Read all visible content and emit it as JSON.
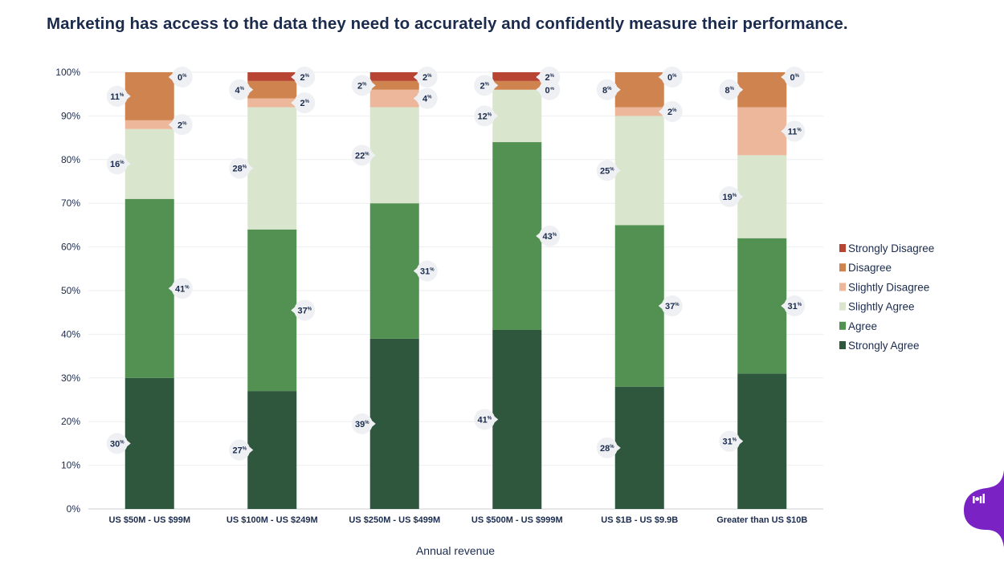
{
  "chart_data": {
    "type": "bar",
    "stacked": true,
    "title": "Marketing has access to the data they need to accurately and confidently measure their performance.",
    "xlabel": "Annual revenue",
    "ylabel": "",
    "ylim": [
      0,
      100
    ],
    "yticks": [
      "0%",
      "10%",
      "20%",
      "30%",
      "40%",
      "50%",
      "60%",
      "70%",
      "80%",
      "90%",
      "100%"
    ],
    "categories": [
      "US $50M - US $99M",
      "US $100M - US $249M",
      "US $250M - US $499M",
      "US $500M - US $999M",
      "US $1B - US $9.9B",
      "Greater than US $10B"
    ],
    "series": [
      {
        "name": "Strongly Agree",
        "color": "#2e573d",
        "values": [
          30,
          27,
          39,
          41,
          28,
          31
        ]
      },
      {
        "name": "Agree",
        "color": "#529152",
        "values": [
          41,
          37,
          31,
          43,
          37,
          31
        ]
      },
      {
        "name": "Slightly Agree",
        "color": "#d9e5cd",
        "values": [
          16,
          28,
          22,
          12,
          25,
          19
        ]
      },
      {
        "name": "Slightly Disagree",
        "color": "#edb79b",
        "values": [
          2,
          2,
          4,
          0,
          2,
          11
        ]
      },
      {
        "name": "Disagree",
        "color": "#cf8450",
        "values": [
          11,
          4,
          2,
          2,
          8,
          8
        ]
      },
      {
        "name": "Strongly Disagree",
        "color": "#b84434",
        "values": [
          0,
          2,
          2,
          2,
          0,
          0
        ]
      }
    ],
    "legend_order": [
      "Strongly Disagree",
      "Disagree",
      "Slightly Disagree",
      "Slightly Agree",
      "Agree",
      "Strongly Agree"
    ],
    "legend": "right",
    "grid": true
  },
  "brand": {
    "color": "#7b22c4",
    "mark": "ı•ıl"
  }
}
